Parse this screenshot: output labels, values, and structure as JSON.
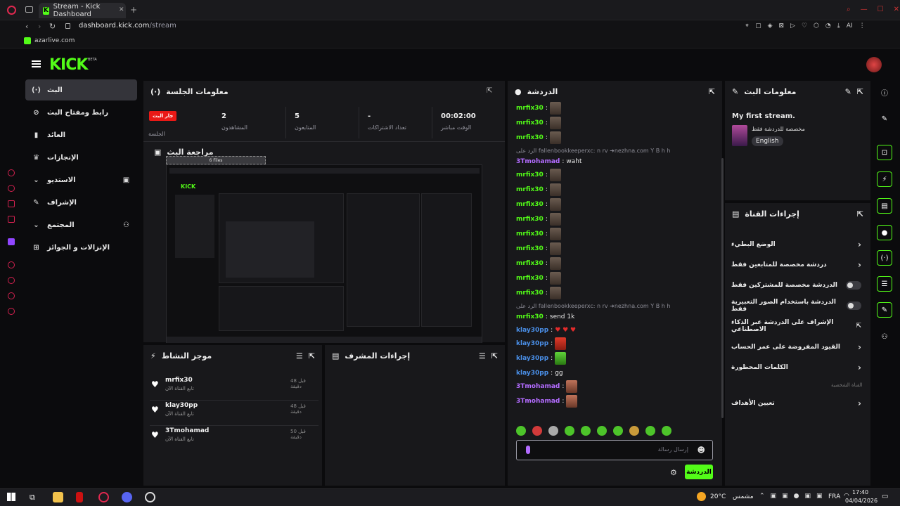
{
  "browser": {
    "tab_title": "Stream - Kick Dashboard",
    "url_host": "dashboard.kick.com",
    "url_path": "/stream",
    "bookmark": "azarlive.com",
    "ai_label": "AI"
  },
  "header": {
    "beta": "BETA"
  },
  "nav": {
    "items": [
      {
        "label": "البث",
        "icon": "live-icon"
      },
      {
        "label": "رابط ومفتاح البث",
        "icon": "link-icon"
      },
      {
        "label": "العائد",
        "icon": "chart-icon"
      },
      {
        "label": "الإنجازات",
        "icon": "trophy-icon"
      },
      {
        "label": "الاستديو",
        "icon": "studio-icon"
      },
      {
        "label": "الإشراف",
        "icon": "wrench-icon"
      },
      {
        "label": "المجتمع",
        "icon": "community-icon"
      },
      {
        "label": "الإنزالات و الجوائز",
        "icon": "gift-icon"
      }
    ]
  },
  "session": {
    "title": "معلومات الجلسة",
    "live_badge": "جار البث",
    "session_label": "الجلسة",
    "stats": [
      {
        "value": "2",
        "label": "المشاهدون"
      },
      {
        "value": "5",
        "label": "المتابعون"
      },
      {
        "value": "-",
        "label": "تعداد الاشتراكات"
      },
      {
        "value": "00:02:00",
        "label": "الوقت مباشر"
      }
    ]
  },
  "preview": {
    "title": "مراجعة البث",
    "overlay": "6 Files"
  },
  "activity": {
    "title": "موجز النشاط",
    "items": [
      {
        "name": "mrfix30",
        "sub": "تابع القناة الآن",
        "time": "قبل 48 دقيقة"
      },
      {
        "name": "klay30pp",
        "sub": "تابع القناة الآن",
        "time": "قبل 48 دقيقة"
      },
      {
        "name": "3Tmohamad",
        "sub": "تابع القناة الآن",
        "time": "قبل 50 دقيقة"
      }
    ]
  },
  "mod_actions": {
    "title": "إجراءات المشرف"
  },
  "chat": {
    "title": "الدردشة",
    "placeholder": "إرسال رسالة",
    "send_label": "الدردشة",
    "messages": [
      {
        "user": "mrfix30",
        "color": "#53fc18",
        "type": "emote"
      },
      {
        "user": "mrfix30",
        "color": "#53fc18",
        "type": "emote"
      },
      {
        "user": "mrfix30",
        "color": "#53fc18",
        "type": "emote"
      },
      {
        "reply": "الرد على fallenbookkeeperxc: n rv ➜nezhna.com Y B h h"
      },
      {
        "user": "3Tmohamad",
        "color": "#b36cff",
        "text": "waht"
      },
      {
        "user": "mrfix30",
        "color": "#53fc18",
        "type": "emote"
      },
      {
        "user": "mrfix30",
        "color": "#53fc18",
        "type": "emote"
      },
      {
        "user": "mrfix30",
        "color": "#53fc18",
        "type": "emote"
      },
      {
        "user": "mrfix30",
        "color": "#53fc18",
        "type": "emote"
      },
      {
        "user": "mrfix30",
        "color": "#53fc18",
        "type": "emote"
      },
      {
        "user": "mrfix30",
        "color": "#53fc18",
        "type": "emote"
      },
      {
        "user": "mrfix30",
        "color": "#53fc18",
        "type": "emote"
      },
      {
        "user": "mrfix30",
        "color": "#53fc18",
        "type": "emote"
      },
      {
        "user": "mrfix30",
        "color": "#53fc18",
        "type": "emote"
      },
      {
        "reply": "الرد على fallenbookkeeperxc: n rv ➜nezhna.com Y B h h"
      },
      {
        "user": "mrfix30",
        "color": "#53fc18",
        "text": "send 1k"
      },
      {
        "user": "klay30pp",
        "color": "#4a8fe8",
        "text": "♥ ♥ ♥"
      },
      {
        "user": "klay30pp",
        "color": "#4a8fe8",
        "type": "red"
      },
      {
        "user": "klay30pp",
        "color": "#4a8fe8",
        "type": "grn"
      },
      {
        "user": "klay30pp",
        "color": "#4a8fe8",
        "text": "gg"
      },
      {
        "user": "3Tmohamad",
        "color": "#b36cff",
        "type": "face"
      },
      {
        "user": "3Tmohamad",
        "color": "#b36cff",
        "type": "face"
      }
    ]
  },
  "stream_info": {
    "title": "معلومات البث",
    "stream_title": "My first stream.",
    "category": "مخصصة للدردشة فقط",
    "language": "English"
  },
  "channel_actions": {
    "title": "إجراءات القناة",
    "items": [
      {
        "label": "الوضع البطيء",
        "control": "chevron"
      },
      {
        "label": "دردشة مخصصة للمتابعين فقط",
        "control": "chevron"
      },
      {
        "label": "الدردشة مخصصة للمشتركين فقط",
        "control": "toggle"
      },
      {
        "label": "الدردشة باستخدام الصور التعبيرية فقط",
        "control": "toggle"
      },
      {
        "label": "الإشراف على الدردشة عبر الذكاء الاصطناعي",
        "control": "external"
      },
      {
        "label": "القيود المفروضة على عمر الحساب",
        "control": "chevron"
      },
      {
        "label": "الكلمات المحظورة",
        "control": "chevron"
      }
    ],
    "section_label": "القناة الشخصية",
    "target_label": "تعيين الأهداف"
  },
  "taskbar": {
    "weather_temp": "20°C",
    "weather_text": "مشمس",
    "lang": "FRA",
    "time": "17:40",
    "date": "04/04/2026"
  }
}
